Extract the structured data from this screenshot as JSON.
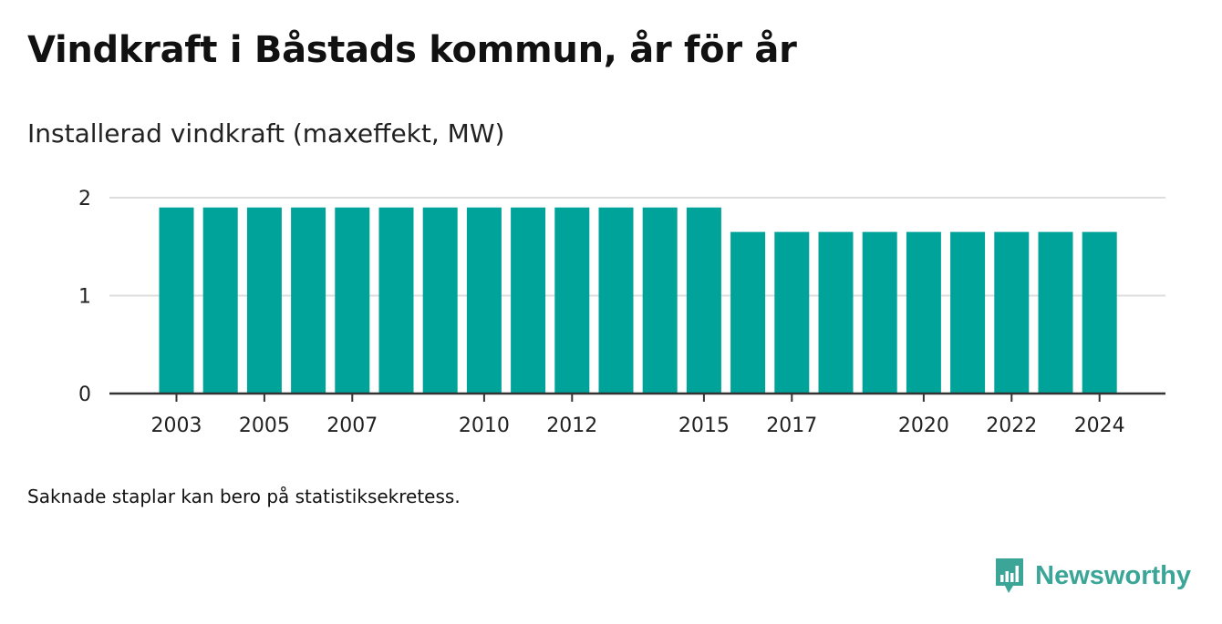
{
  "title": "Vindkraft i Båstads kommun, år för år",
  "subtitle": "Installerad vindkraft (maxeffekt, MW)",
  "footnote": "Saknade staplar kan bero på statistiksekretess.",
  "brand": {
    "name": "Newsworthy",
    "logo_icon": "newsworthy-chart-bubble-icon"
  },
  "colors": {
    "bar": "#00a39a",
    "grid": "#dddddd",
    "axis": "#333333",
    "brand": "#3ba597"
  },
  "chart_data": {
    "type": "bar",
    "categories": [
      "2003",
      "2004",
      "2005",
      "2006",
      "2007",
      "2008",
      "2009",
      "2010",
      "2011",
      "2012",
      "2013",
      "2014",
      "2015",
      "2016",
      "2017",
      "2018",
      "2019",
      "2020",
      "2021",
      "2022",
      "2023",
      "2024"
    ],
    "values": [
      1.9,
      1.9,
      1.9,
      1.9,
      1.9,
      1.9,
      1.9,
      1.9,
      1.9,
      1.9,
      1.9,
      1.9,
      1.9,
      1.65,
      1.65,
      1.65,
      1.65,
      1.65,
      1.65,
      1.65,
      1.65,
      1.65
    ],
    "x_tick_labels": [
      "2003",
      "2005",
      "2007",
      "2010",
      "2012",
      "2015",
      "2017",
      "2020",
      "2022",
      "2024"
    ],
    "y_ticks": [
      0,
      1,
      2
    ],
    "ylim": [
      0,
      2
    ],
    "grid": true,
    "legend": "none"
  }
}
